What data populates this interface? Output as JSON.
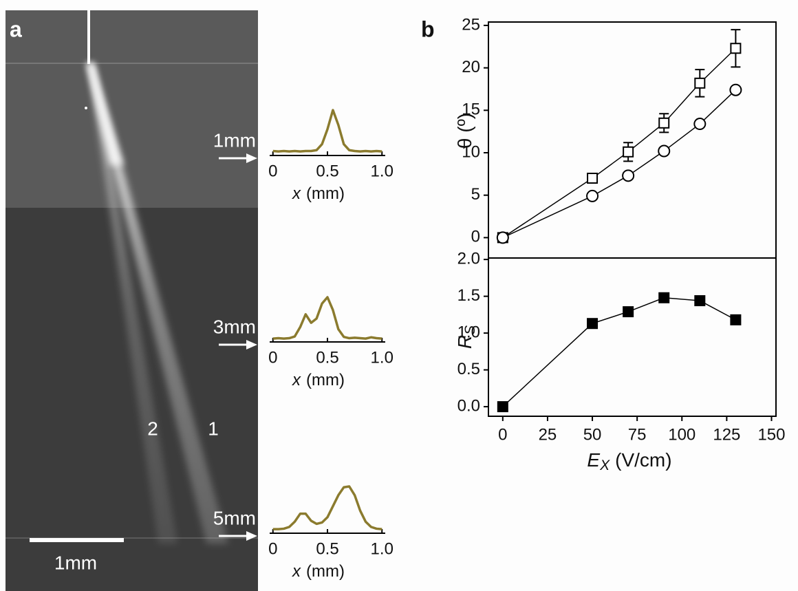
{
  "panels": {
    "a": {
      "label": "a",
      "scale_bar": "1mm",
      "beam_labels": [
        "2",
        "1"
      ]
    },
    "b": {
      "label": "b"
    }
  },
  "chart_data": [
    {
      "type": "line",
      "ylabel": "θ (º)",
      "xlim": [
        -8,
        152.5
      ],
      "ylim": [
        -2.4,
        25.4
      ],
      "yticks": [
        0,
        5,
        10,
        15,
        20,
        25
      ],
      "series": [
        {
          "marker": "open-square",
          "color": "#000000",
          "x": [
            0,
            50,
            70,
            90,
            110,
            130
          ],
          "values": [
            0,
            7,
            10.1,
            13.5,
            18.2,
            22.3
          ],
          "errors": [
            0,
            0,
            1.1,
            1.1,
            1.6,
            2.2
          ]
        },
        {
          "marker": "open-circle",
          "color": "#000000",
          "x": [
            0,
            50,
            70,
            90,
            110,
            130
          ],
          "values": [
            0,
            4.9,
            7.3,
            10.2,
            13.4,
            17.4
          ]
        }
      ]
    },
    {
      "type": "line",
      "ylabel": "R",
      "ylabel_sub": "S",
      "xlabel": "E",
      "xlabel_sub": "X",
      "xlabel_unit": "(V/cm)",
      "xlim": [
        -8,
        152.5
      ],
      "xticks": [
        0,
        25,
        50,
        75,
        100,
        125,
        150
      ],
      "ylim": [
        -0.13,
        2.02
      ],
      "yticks": [
        {
          "value": 0,
          "label": "0.0"
        },
        0.5,
        {
          "value": 1,
          "label": "1.0"
        },
        1.5,
        {
          "value": 2,
          "label": "2.0"
        }
      ],
      "series": [
        {
          "marker": "filled-square",
          "color": "#000000",
          "x": [
            0,
            50,
            70,
            90,
            110,
            130
          ],
          "values": [
            0,
            1.13,
            1.29,
            1.48,
            1.44,
            1.18
          ]
        }
      ]
    },
    {
      "type": "profile",
      "annotation": "1mm",
      "xlabel": "x",
      "xlabel_unit": "(mm)",
      "color": "#8b7b2e",
      "xlim": [
        -0.03,
        1.03
      ],
      "xticks": [
        0,
        0.5,
        {
          "value": 1,
          "label": "1.0"
        }
      ],
      "x": [
        0,
        0.05,
        0.1,
        0.15,
        0.2,
        0.25,
        0.3,
        0.35,
        0.4,
        0.45,
        0.5,
        0.55,
        0.6,
        0.65,
        0.7,
        0.75,
        0.8,
        0.85,
        0.9,
        0.95,
        1
      ],
      "values": [
        0.04,
        0.03,
        0.04,
        0.03,
        0.04,
        0.03,
        0.04,
        0.04,
        0.06,
        0.2,
        0.55,
        1,
        0.65,
        0.2,
        0.06,
        0.04,
        0.03,
        0.04,
        0.03,
        0.04,
        0.03
      ]
    },
    {
      "type": "profile",
      "annotation": "3mm",
      "xlabel": "x",
      "xlabel_unit": "(mm)",
      "color": "#8b7b2e",
      "xlim": [
        -0.03,
        1.03
      ],
      "xticks": [
        0,
        0.5,
        {
          "value": 1,
          "label": "1.0"
        }
      ],
      "x": [
        0,
        0.05,
        0.1,
        0.15,
        0.2,
        0.25,
        0.3,
        0.35,
        0.4,
        0.45,
        0.5,
        0.55,
        0.6,
        0.65,
        0.7,
        0.75,
        0.8,
        0.85,
        0.9,
        0.95,
        1
      ],
      "values": [
        0.03,
        0.04,
        0.03,
        0.04,
        0.08,
        0.3,
        0.6,
        0.4,
        0.5,
        0.85,
        1,
        0.7,
        0.25,
        0.07,
        0.04,
        0.05,
        0.04,
        0.03,
        0.06,
        0.04,
        0.03
      ]
    },
    {
      "type": "profile",
      "annotation": "5mm",
      "xlabel": "x",
      "xlabel_unit": "(mm)",
      "color": "#8b7b2e",
      "xlim": [
        -0.03,
        1.03
      ],
      "xticks": [
        0,
        0.5,
        {
          "value": 1,
          "label": "1.0"
        }
      ],
      "x": [
        0,
        0.05,
        0.1,
        0.15,
        0.2,
        0.25,
        0.3,
        0.35,
        0.4,
        0.45,
        0.5,
        0.55,
        0.6,
        0.65,
        0.7,
        0.75,
        0.8,
        0.85,
        0.9,
        0.95,
        1
      ],
      "values": [
        0.03,
        0.03,
        0.04,
        0.08,
        0.2,
        0.38,
        0.38,
        0.22,
        0.15,
        0.18,
        0.3,
        0.55,
        0.8,
        0.98,
        1,
        0.8,
        0.45,
        0.2,
        0.08,
        0.04,
        0.03
      ]
    }
  ]
}
